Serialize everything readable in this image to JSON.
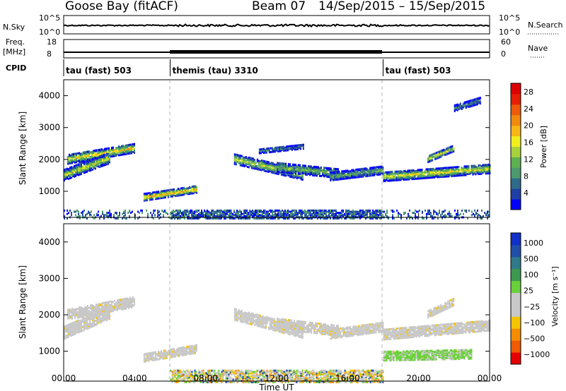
{
  "header": {
    "title": "Goose Bay (fitACF)",
    "beam": "Beam 07",
    "date_range": "14/Sep/2015 – 15/Sep/2015"
  },
  "summary_panels": {
    "nsky_label": "N.Sky",
    "nsearch_label": "N.Search",
    "nsky_ticks": [
      "10^5",
      "10^0"
    ],
    "nsearch_ticks": [
      "10^5",
      "10^0"
    ],
    "freq_label_1": "Freq.",
    "freq_label_2": "[MHz]",
    "freq_ticks": [
      "18",
      "8"
    ],
    "nave_label": "Nave",
    "nave_ticks": [
      "60",
      "0"
    ],
    "cpid_label": "CPID",
    "cpid_segments": [
      {
        "label": "tau (fast) 503",
        "start_hour": 0
      },
      {
        "label": "themis (tau) 3310",
        "start_hour": 6
      },
      {
        "label": "tau (fast) 503",
        "start_hour": 18
      }
    ]
  },
  "colors": {
    "power_scale": [
      "#0000ff",
      "#1f3fa6",
      "#2e6b8a",
      "#4c9a6e",
      "#5db050",
      "#a8d23c",
      "#f2ee1e",
      "#f7b715",
      "#f28a0e",
      "#ed5a0a",
      "#e61e05",
      "#dd0000"
    ],
    "velocity_scale": [
      "#e60000",
      "#f05a00",
      "#f58c00",
      "#f5c400",
      "#c8c8c8",
      "#c8c8c8",
      "#6ad13a",
      "#3c9a50",
      "#2f7a8a",
      "#1f4fa8",
      "#1030c8"
    ],
    "dashed_marker": "#b4b4b4"
  },
  "chart_data": [
    {
      "type": "heatmap",
      "panel": "power",
      "ylabel": "Slant Range [km]",
      "xlabel": "",
      "x_range_hours": [
        0,
        24
      ],
      "ylim": [
        180,
        4500
      ],
      "y_ticks": [
        1000,
        2000,
        3000,
        4000
      ],
      "colorbar_label": "Power [dB]",
      "colorbar_ticks": [
        4,
        8,
        12,
        16,
        20,
        24,
        28
      ],
      "colorbar_range": [
        0,
        30
      ],
      "bands": [
        {
          "from_hour": 0.2,
          "to_hour": 4.0,
          "range_start": 2050,
          "range_end": 2400,
          "thickness": 300,
          "level": 0.65
        },
        {
          "from_hour": 0.0,
          "to_hour": 2.6,
          "range_start": 1550,
          "range_end": 2100,
          "thickness": 350,
          "level": 0.55
        },
        {
          "from_hour": 4.5,
          "to_hour": 7.5,
          "range_start": 850,
          "range_end": 1100,
          "thickness": 220,
          "level": 0.75
        },
        {
          "from_hour": 9.6,
          "to_hour": 13.5,
          "range_start": 2050,
          "range_end": 1550,
          "thickness": 320,
          "level": 0.55
        },
        {
          "from_hour": 12.0,
          "to_hour": 15.5,
          "range_start": 1800,
          "range_end": 1600,
          "thickness": 300,
          "level": 0.45
        },
        {
          "from_hour": 15.0,
          "to_hour": 18.0,
          "range_start": 1500,
          "range_end": 1700,
          "thickness": 250,
          "level": 0.4
        },
        {
          "from_hour": 18.0,
          "to_hour": 24.0,
          "range_start": 1500,
          "range_end": 1750,
          "thickness": 300,
          "level": 0.6
        },
        {
          "from_hour": 20.5,
          "to_hour": 22.0,
          "range_start": 2050,
          "range_end": 2400,
          "thickness": 200,
          "level": 0.6
        },
        {
          "from_hour": 11.0,
          "to_hour": 13.5,
          "range_start": 2300,
          "range_end": 2450,
          "thickness": 150,
          "level": 0.3
        },
        {
          "from_hour": 22.0,
          "to_hour": 23.5,
          "range_start": 3650,
          "range_end": 3900,
          "thickness": 200,
          "level": 0.3
        }
      ],
      "near_range": {
        "from_hour": 0.0,
        "to_hour": 24.0,
        "range_max": 450,
        "level": 0.35
      }
    },
    {
      "type": "heatmap",
      "panel": "velocity",
      "ylabel": "Slant Range [km]",
      "xlabel": "Time UT",
      "x_range_hours": [
        0,
        24
      ],
      "x_tick_labels": [
        "00:00",
        "04:00",
        "08:00",
        "12:00",
        "16:00",
        "20:00",
        "00:00"
      ],
      "ylim": [
        180,
        4500
      ],
      "y_ticks": [
        1000,
        2000,
        3000,
        4000
      ],
      "colorbar_label": "Velocity [m s⁻¹]",
      "colorbar_ticks": [
        "1000",
        "500",
        "100",
        "25",
        "−25",
        "−100",
        "−500",
        "−1000"
      ],
      "bands": [
        {
          "from_hour": 0.2,
          "to_hour": 4.0,
          "range_start": 2050,
          "range_end": 2400,
          "thickness": 300,
          "vel": 0
        },
        {
          "from_hour": 0.0,
          "to_hour": 2.6,
          "range_start": 1550,
          "range_end": 2100,
          "thickness": 350,
          "vel": 0
        },
        {
          "from_hour": 4.5,
          "to_hour": 7.5,
          "range_start": 850,
          "range_end": 1100,
          "thickness": 220,
          "vel": 0
        },
        {
          "from_hour": 9.6,
          "to_hour": 13.5,
          "range_start": 2050,
          "range_end": 1550,
          "thickness": 320,
          "vel": 0
        },
        {
          "from_hour": 12.0,
          "to_hour": 15.5,
          "range_start": 1800,
          "range_end": 1600,
          "thickness": 300,
          "vel": 0
        },
        {
          "from_hour": 15.0,
          "to_hour": 18.0,
          "range_start": 1500,
          "range_end": 1700,
          "thickness": 250,
          "vel": 0
        },
        {
          "from_hour": 18.0,
          "to_hour": 24.0,
          "range_start": 1500,
          "range_end": 1750,
          "thickness": 300,
          "vel": 0
        },
        {
          "from_hour": 20.5,
          "to_hour": 22.0,
          "range_start": 2050,
          "range_end": 2400,
          "thickness": 200,
          "vel": 0
        },
        {
          "from_hour": 18.0,
          "to_hour": 23.0,
          "range_start": 900,
          "range_end": 950,
          "thickness": 250,
          "vel": 120
        }
      ],
      "near_range": {
        "from_hour": 6.0,
        "to_hour": 18.0,
        "range_max": 500,
        "mixed": true
      }
    }
  ]
}
